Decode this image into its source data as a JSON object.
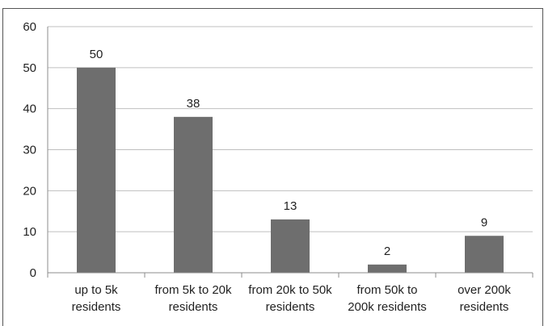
{
  "chart_data": {
    "type": "bar",
    "categories": [
      [
        "up to 5k",
        "residents"
      ],
      [
        "from 5k to 20k",
        "residents"
      ],
      [
        "from 20k to 50k",
        "residents"
      ],
      [
        "from 50k to",
        "200k residents"
      ],
      [
        "over 200k",
        "residents"
      ]
    ],
    "values": [
      50,
      38,
      13,
      2,
      9
    ],
    "data_labels": [
      "50",
      "38",
      "13",
      "2",
      "9"
    ],
    "ylim": [
      0,
      60
    ],
    "y_ticks": [
      0,
      10,
      20,
      30,
      40,
      50,
      60
    ],
    "grid": true,
    "legend": "none",
    "title": "",
    "xlabel": "",
    "ylabel": "",
    "colors": {
      "bar": "#6e6e6e",
      "grid": "#bfbfbf",
      "axis": "#8c8c8c"
    }
  }
}
